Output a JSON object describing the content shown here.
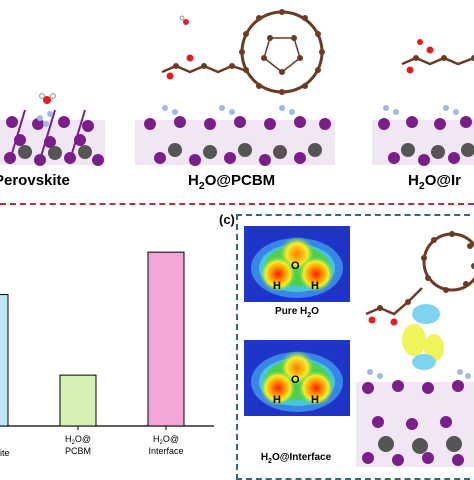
{
  "top_panel": {
    "captions": {
      "left": "Perovskite",
      "middle_prefix": "H",
      "middle_sub": "2",
      "middle_suffix": "O@PCBM",
      "right_prefix": "H",
      "right_sub": "2",
      "right_suffix": "O@Ir"
    }
  },
  "panel_c": {
    "label": "(c)",
    "map_top_label_prefix": "Pure H",
    "map_top_label_sub": "2",
    "map_top_label_suffix": "O",
    "map_bottom_label_prefix": "H",
    "map_bottom_label_sub": "2",
    "map_bottom_label_suffix": "O@Interface",
    "atoms": {
      "o": "O",
      "h1": "H",
      "h2": "H"
    }
  },
  "chart_data": {
    "type": "bar",
    "categories": [
      "ite",
      "H2O@ PCBM",
      "H2O@ Interface"
    ],
    "category_labels": [
      {
        "lines": [
          "ite"
        ]
      },
      {
        "lines": [
          "H",
          "2",
          "O@",
          "PCBM"
        ]
      },
      {
        "lines": [
          "H",
          "2",
          "O@",
          "Interface"
        ]
      }
    ],
    "values": [
      0.62,
      0.24,
      0.82
    ],
    "ylim": [
      0,
      1
    ],
    "colors": [
      "#bfe6f5",
      "#d7f0b4",
      "#f4a6d6"
    ],
    "title": "",
    "xlabel": "",
    "ylabel": ""
  }
}
